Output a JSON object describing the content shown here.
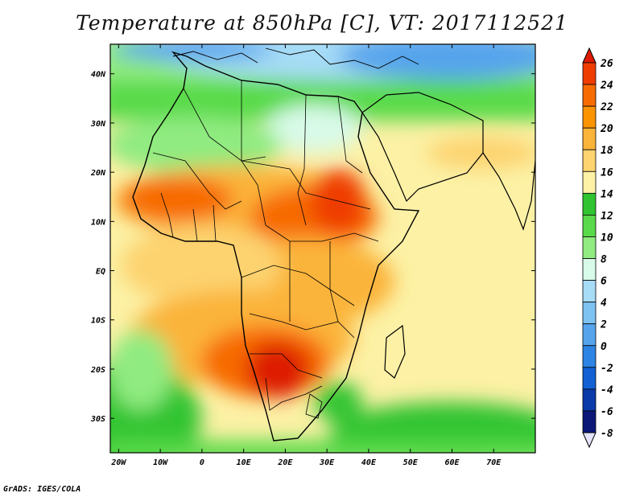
{
  "title": "Temperature at 850hPa [C], VT: 2017112521",
  "footer": "GrADS: IGES/COLA",
  "map": {
    "region": "Africa",
    "lat_range": [
      -37,
      46
    ],
    "lon_range": [
      -22,
      80
    ],
    "lat_labels": [
      {
        "lat": 40,
        "text": "40N"
      },
      {
        "lat": 30,
        "text": "30N"
      },
      {
        "lat": 20,
        "text": "20N"
      },
      {
        "lat": 10,
        "text": "10N"
      },
      {
        "lat": 0,
        "text": "EQ"
      },
      {
        "lat": -10,
        "text": "10S"
      },
      {
        "lat": -20,
        "text": "20S"
      },
      {
        "lat": -30,
        "text": "30S"
      }
    ],
    "lon_labels": [
      {
        "lon": -20,
        "text": "20W"
      },
      {
        "lon": -10,
        "text": "10W"
      },
      {
        "lon": 0,
        "text": "0"
      },
      {
        "lon": 10,
        "text": "10E"
      },
      {
        "lon": 20,
        "text": "20E"
      },
      {
        "lon": 30,
        "text": "30E"
      },
      {
        "lon": 40,
        "text": "40E"
      },
      {
        "lon": 50,
        "text": "50E"
      },
      {
        "lon": 60,
        "text": "60E"
      },
      {
        "lon": 70,
        "text": "70E"
      }
    ]
  },
  "colorbar": {
    "levels": [
      "26",
      "24",
      "22",
      "20",
      "18",
      "16",
      "14",
      "12",
      "10",
      "8",
      "6",
      "4",
      "2",
      "0",
      "-2",
      "-4",
      "-6",
      "-8"
    ],
    "colors": [
      "#dd1a00",
      "#ef3d00",
      "#f76b00",
      "#fb9400",
      "#fbb43a",
      "#fdd370",
      "#fcf1a5",
      "#30c430",
      "#59da4a",
      "#90eb80",
      "#d8fae8",
      "#a6dcf6",
      "#7ec2f2",
      "#56a4ec",
      "#2e84e4",
      "#1260d4",
      "#0a3aaa",
      "#0b1878",
      "#e4e4fc"
    ]
  }
}
